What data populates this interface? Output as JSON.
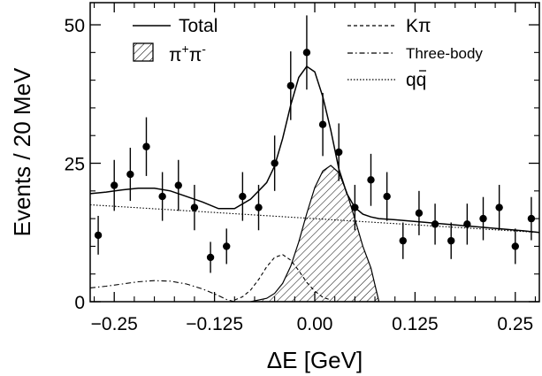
{
  "chart_data": {
    "type": "scatter",
    "title": "",
    "xlabel": "ΔE [GeV]",
    "ylabel": "Events / 20 MeV",
    "xlim": [
      -0.28,
      0.28
    ],
    "ylim": [
      0,
      54
    ],
    "x_ticks": [
      {
        "value": -0.25,
        "label": "−0.25"
      },
      {
        "value": -0.125,
        "label": "−0.125"
      },
      {
        "value": 0.0,
        "label": "0.00"
      },
      {
        "value": 0.125,
        "label": "0.125"
      },
      {
        "value": 0.25,
        "label": "0.25"
      }
    ],
    "y_ticks": [
      {
        "value": 0,
        "label": "0"
      },
      {
        "value": 25,
        "label": "25"
      },
      {
        "value": 50,
        "label": "50"
      }
    ],
    "grid": false,
    "legend": {
      "placement": "top",
      "entries": [
        {
          "label": "Total",
          "style": "solid"
        },
        {
          "label": "π",
          "sup": "+",
          "label2": "π",
          "sup2": "-",
          "style": "hatched"
        },
        {
          "label": "Kπ",
          "style": "dashed"
        },
        {
          "label": "Three-body",
          "style": "dash-dot"
        },
        {
          "label": "qq",
          "style": "dotted"
        }
      ]
    },
    "data_points": [
      {
        "x": -0.27,
        "y": 12,
        "err": 3.5
      },
      {
        "x": -0.25,
        "y": 21,
        "err": 4.6
      },
      {
        "x": -0.23,
        "y": 23,
        "err": 4.8
      },
      {
        "x": -0.21,
        "y": 28,
        "err": 5.3
      },
      {
        "x": -0.19,
        "y": 19,
        "err": 4.4
      },
      {
        "x": -0.17,
        "y": 21,
        "err": 4.6
      },
      {
        "x": -0.15,
        "y": 17,
        "err": 4.1
      },
      {
        "x": -0.13,
        "y": 8,
        "err": 2.8
      },
      {
        "x": -0.11,
        "y": 10,
        "err": 3.2
      },
      {
        "x": -0.09,
        "y": 19,
        "err": 4.4
      },
      {
        "x": -0.07,
        "y": 17,
        "err": 4.1
      },
      {
        "x": -0.05,
        "y": 25,
        "err": 5.0
      },
      {
        "x": -0.03,
        "y": 39,
        "err": 6.2
      },
      {
        "x": -0.01,
        "y": 45,
        "err": 6.7
      },
      {
        "x": 0.01,
        "y": 32,
        "err": 5.7
      },
      {
        "x": 0.03,
        "y": 27,
        "err": 5.2
      },
      {
        "x": 0.05,
        "y": 17,
        "err": 4.1
      },
      {
        "x": 0.07,
        "y": 22,
        "err": 4.7
      },
      {
        "x": 0.09,
        "y": 19,
        "err": 4.4
      },
      {
        "x": 0.11,
        "y": 11,
        "err": 3.3
      },
      {
        "x": 0.13,
        "y": 16,
        "err": 4.0
      },
      {
        "x": 0.15,
        "y": 14,
        "err": 3.7
      },
      {
        "x": 0.17,
        "y": 11,
        "err": 3.3
      },
      {
        "x": 0.19,
        "y": 14,
        "err": 3.7
      },
      {
        "x": 0.21,
        "y": 15,
        "err": 3.9
      },
      {
        "x": 0.23,
        "y": 17,
        "err": 4.1
      },
      {
        "x": 0.25,
        "y": 10,
        "err": 3.2
      },
      {
        "x": 0.27,
        "y": 15,
        "err": 3.9
      }
    ],
    "curves": {
      "total": {
        "style": "solid",
        "x": [
          -0.28,
          -0.26,
          -0.24,
          -0.22,
          -0.2,
          -0.18,
          -0.16,
          -0.14,
          -0.12,
          -0.1,
          -0.08,
          -0.06,
          -0.05,
          -0.04,
          -0.03,
          -0.02,
          -0.01,
          0.0,
          0.01,
          0.02,
          0.03,
          0.04,
          0.05,
          0.06,
          0.07,
          0.08,
          0.1,
          0.14,
          0.18,
          0.22,
          0.26,
          0.28
        ],
        "y": [
          19.5,
          19.8,
          20.2,
          20.5,
          20.5,
          20.0,
          19.0,
          18.0,
          16.8,
          16.8,
          18.5,
          21.5,
          24.5,
          29.5,
          35.5,
          40.5,
          42.5,
          41.5,
          37.0,
          31.0,
          24.0,
          19.5,
          17.0,
          15.8,
          15.3,
          15.0,
          14.8,
          14.3,
          13.8,
          13.3,
          12.8,
          12.5
        ]
      },
      "pipi": {
        "style": "hatched",
        "x": [
          -0.08,
          -0.06,
          -0.05,
          -0.04,
          -0.03,
          -0.02,
          -0.01,
          0.0,
          0.01,
          0.02,
          0.03,
          0.04,
          0.05,
          0.06,
          0.07,
          0.08
        ],
        "y": [
          0,
          0.6,
          1.5,
          3.3,
          6.4,
          10.8,
          15.9,
          20.6,
          23.6,
          24.6,
          23.3,
          19.7,
          14.9,
          10.0,
          6.1,
          0
        ]
      },
      "kpi": {
        "style": "dashed",
        "x": [
          -0.1,
          -0.09,
          -0.08,
          -0.07,
          -0.06,
          -0.05,
          -0.04,
          -0.03,
          -0.02,
          -0.01,
          0.0,
          0.01,
          0.02
        ],
        "y": [
          0.3,
          0.9,
          2.1,
          4.0,
          6.3,
          8.0,
          8.5,
          7.5,
          5.6,
          3.5,
          1.9,
          0.8,
          0.3
        ]
      },
      "threebody": {
        "style": "dash-dot",
        "x": [
          -0.28,
          -0.26,
          -0.24,
          -0.22,
          -0.2,
          -0.18,
          -0.16,
          -0.14,
          -0.12,
          -0.11,
          -0.1
        ],
        "y": [
          2.5,
          2.8,
          3.2,
          3.6,
          3.8,
          3.7,
          3.2,
          2.3,
          1.1,
          0.4,
          0.0
        ]
      },
      "qq": {
        "style": "dotted",
        "x": [
          -0.28,
          0.28
        ],
        "y": [
          17.5,
          12.5
        ]
      }
    }
  }
}
